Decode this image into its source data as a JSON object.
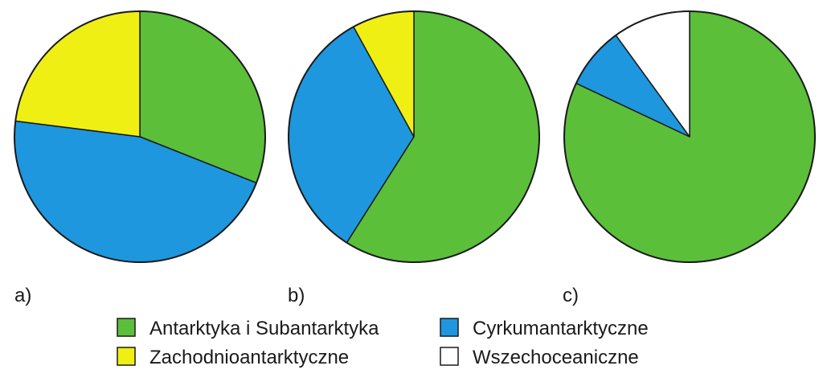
{
  "chart_data": [
    {
      "type": "pie",
      "panel": "a)",
      "slices": [
        {
          "category": "Antarktyka i Subantarktyka",
          "value": 31
        },
        {
          "category": "Cyrkumantarktyczne",
          "value": 46
        },
        {
          "category": "Zachodnioantarktyczne",
          "value": 23
        }
      ]
    },
    {
      "type": "pie",
      "panel": "b)",
      "slices": [
        {
          "category": "Antarktyka i Subantarktyka",
          "value": 59
        },
        {
          "category": "Cyrkumantarktyczne",
          "value": 33
        },
        {
          "category": "Zachodnioantarktyczne",
          "value": 8
        }
      ]
    },
    {
      "type": "pie",
      "panel": "c)",
      "slices": [
        {
          "category": "Antarktyka i Subantarktyka",
          "value": 82
        },
        {
          "category": "Cyrkumantarktyczne",
          "value": 8
        },
        {
          "category": "Wszechoceaniczne",
          "value": 10
        }
      ]
    }
  ],
  "legend": {
    "placement": "bottom",
    "items": [
      {
        "label": "Antarktyka i Subantarktyka",
        "color": "#5bbf3a"
      },
      {
        "label": "Cyrkumantarktyczne",
        "color": "#1e97de"
      },
      {
        "label": "Zachodnioantarktyczne",
        "color": "#f0ef14"
      },
      {
        "label": "Wszechoceaniczne",
        "color": "#ffffff"
      }
    ]
  }
}
